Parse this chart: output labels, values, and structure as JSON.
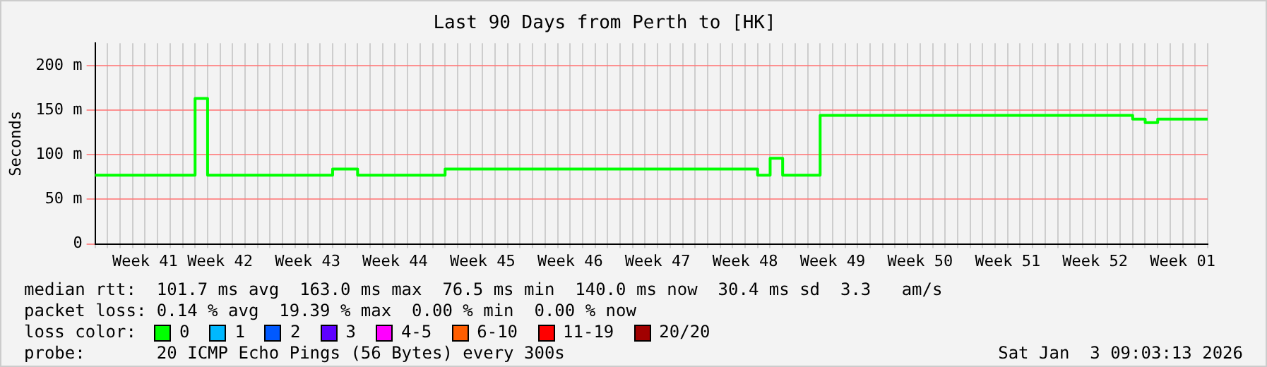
{
  "chart_data": {
    "type": "step",
    "title": "Last 90 Days from Perth to [HK]",
    "ylabel": "Seconds",
    "categories": [
      null,
      null,
      null,
      null,
      "Week 41",
      null,
      null,
      null,
      null,
      null,
      "Week 42",
      null,
      null,
      null,
      null,
      null,
      null,
      "Week 43",
      null,
      null,
      null,
      null,
      null,
      null,
      "Week 44",
      null,
      null,
      null,
      null,
      null,
      null,
      "Week 45",
      null,
      null,
      null,
      null,
      null,
      null,
      "Week 46",
      null,
      null,
      null,
      null,
      null,
      null,
      "Week 47",
      null,
      null,
      null,
      null,
      null,
      null,
      "Week 48",
      null,
      null,
      null,
      null,
      null,
      null,
      "Week 49",
      null,
      null,
      null,
      null,
      null,
      null,
      "Week 50",
      null,
      null,
      null,
      null,
      null,
      null,
      "Week 51",
      null,
      null,
      null,
      null,
      null,
      null,
      "Week 52",
      null,
      null,
      null,
      null,
      null,
      null,
      "Week 01",
      null,
      null
    ],
    "series": [
      {
        "color": "#00ff00",
        "values": [
          77,
          77,
          77,
          77,
          77,
          77,
          77,
          77,
          77,
          163,
          77,
          77,
          77,
          77,
          77,
          77,
          77,
          77,
          77,
          77,
          84,
          84,
          77,
          77,
          77,
          77,
          77,
          77,
          77,
          84,
          84,
          84,
          84,
          84,
          84,
          84,
          84,
          84,
          84,
          84,
          84,
          84,
          84,
          84,
          84,
          84,
          84,
          84,
          84,
          84,
          84,
          84,
          84,
          84,
          77,
          96,
          77,
          77,
          77,
          144,
          144,
          144,
          144,
          144,
          144,
          144,
          144,
          144,
          144,
          144,
          144,
          144,
          144,
          144,
          144,
          144,
          144,
          144,
          144,
          144,
          144,
          144,
          144,
          144,
          140,
          136,
          140,
          140,
          140,
          140
        ]
      }
    ],
    "ylim": [
      0,
      225
    ],
    "yticks": [
      0,
      {
        "value": 50,
        "label": "50 m"
      },
      {
        "value": 100,
        "label": "100 m"
      },
      {
        "value": 150,
        "label": "150 m"
      },
      {
        "value": 200,
        "label": "200 m"
      }
    ],
    "grid": true,
    "legend": false,
    "line_style": "solid",
    "marker": "none",
    "annotations": [
      "median rtt:  101.7 ms avg  163.0 ms max  76.5 ms min  140.0 ms now  30.4 ms sd  3.3   am/s",
      "packet loss: 0.14 % avg  19.39 % max  0.00 % min  0.00 % now",
      "loss color:",
      "0",
      "1",
      "2",
      "3",
      "4-5",
      "6-10",
      "11-19",
      "20/20",
      "probe:       20 ICMP Echo Pings (56 Bytes) every 300s",
      "Sat Jan  3 09:03:13 2026"
    ]
  }
}
